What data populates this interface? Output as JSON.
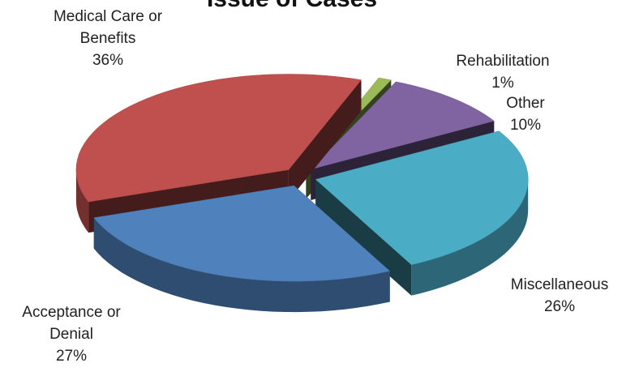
{
  "chart_data": {
    "type": "pie",
    "title": "Issue of Cases",
    "categories": [
      "Rehabilitation",
      "Other",
      "Miscellaneous",
      "Acceptance or Denial",
      "Medical Care or Benefits"
    ],
    "values": [
      1,
      10,
      26,
      27,
      36
    ],
    "value_labels": [
      "1%",
      "10%",
      "26%",
      "27%",
      "36%"
    ],
    "colors": [
      "#9bbb59",
      "#8064a2",
      "#4bacc6",
      "#4f81bd",
      "#c0504d"
    ]
  }
}
